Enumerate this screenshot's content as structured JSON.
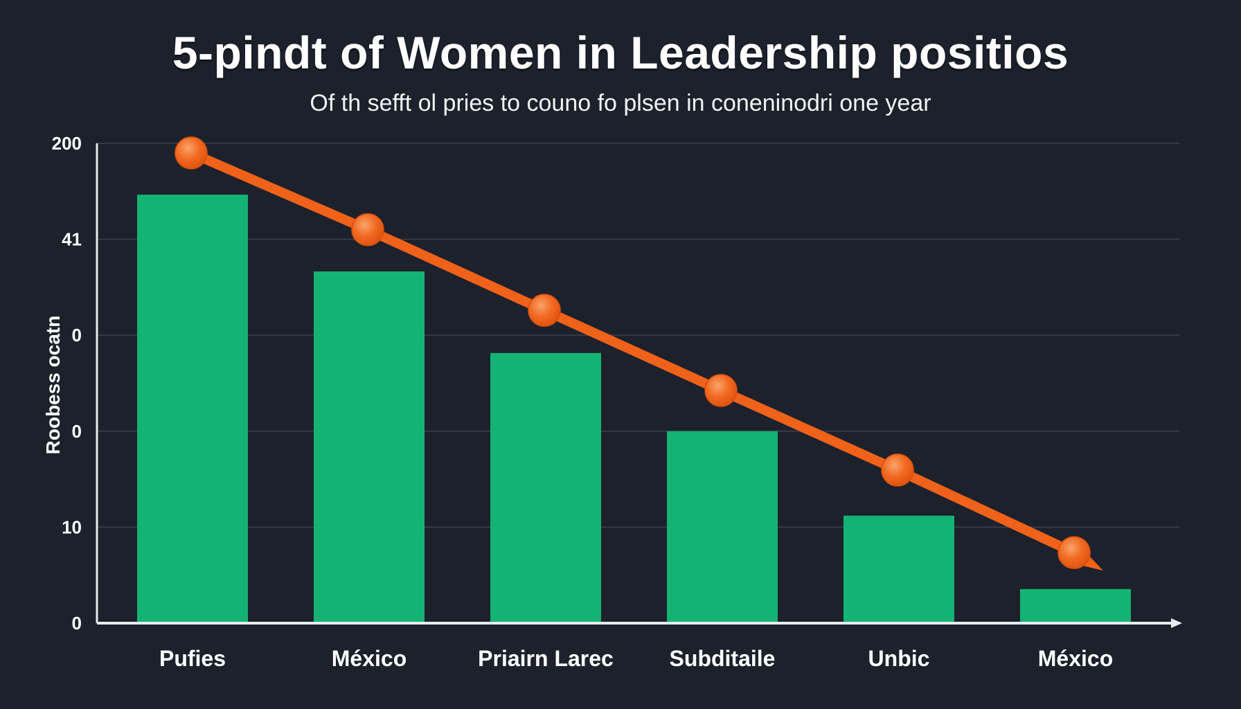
{
  "colors": {
    "background": "#1c212c",
    "bar": "#14b373",
    "line": "#f0621a",
    "marker": "#f26a22",
    "marker_highlight": "#f79a5f",
    "grid": "#343b48",
    "axis": "#e8ecef",
    "text": "#ffffff"
  },
  "chart_data": {
    "type": "bar",
    "title": "5-pindt of Women in Leadership positios",
    "subtitle": "Of th sefft ol pries to couno fo plsen in coneninodri one year",
    "xlabel": "",
    "ylabel": "Roobess ocatn",
    "categories": [
      "Pufies",
      "México",
      "Priairn Larec",
      "Subditaile",
      "Unbic",
      "México"
    ],
    "yticks": [
      "0",
      "10",
      "0",
      "0",
      "41",
      "200"
    ],
    "ylim": [
      0,
      100
    ],
    "grid": true,
    "legend": "none",
    "series": [
      {
        "name": "bars",
        "type": "bar",
        "values": [
          89.3,
          73.3,
          56.3,
          40.0,
          22.4,
          7.1
        ]
      },
      {
        "name": "trend",
        "type": "line",
        "values": [
          98.0,
          82.0,
          65.2,
          48.5,
          31.9,
          14.7
        ],
        "end_arrow": true
      }
    ]
  }
}
